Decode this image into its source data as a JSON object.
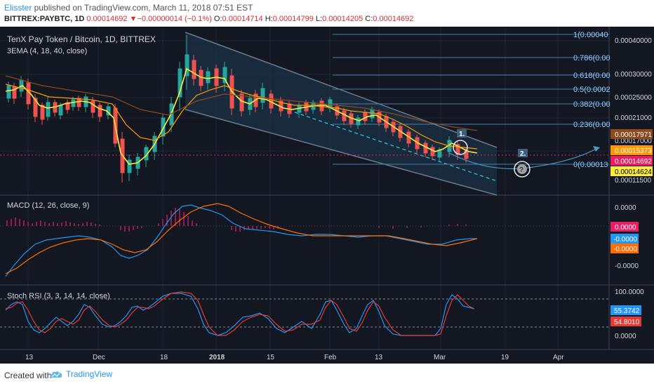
{
  "header": {
    "author": "Elisster",
    "published": " published on TradingView.com, March 11, 2018 07:51 EST",
    "symbol": "BITTREX:PAYBTC, 1D",
    "last": "0.00014692",
    "change": "▼−0.00000014 (−0.1%)",
    "open_label": "O:",
    "open": "0.00014714",
    "high_label": "H:",
    "high": "0.00014799",
    "low_label": "L:",
    "low": "0.00014205",
    "close_label": "C:",
    "close": "0.00014692"
  },
  "main": {
    "title": "TenX Pay Token / Bitcoin, 1D, BITTREX",
    "indicator": "3EMA (4, 18, 40, close)",
    "price_axis": [
      "0.00040000",
      "0.00030000",
      "0.00025000",
      "0.00021000",
      "0.00017000",
      "0.00011500"
    ],
    "price_badges": [
      {
        "value": "0.00017971",
        "color": "#8d4a1c"
      },
      {
        "value": "0.00015373",
        "color": "#ff9800"
      },
      {
        "value": "0.00014692",
        "color": "#e91e63"
      },
      {
        "value": "0.00014624",
        "color": "#ffeb3b"
      }
    ],
    "fib_levels": [
      "1(0.00040",
      "0.786(0.00",
      "0.618(0.00",
      "0.5(0.0002",
      "0.382(0.00",
      "0.236(0.00",
      "0(0.00013"
    ],
    "markers": [
      "1.",
      "2.",
      "?"
    ]
  },
  "macd": {
    "title": "MACD (12, 26, close, 9)",
    "axis": [
      "0.0000",
      "-0.0000"
    ],
    "badges": [
      {
        "value": "0.0000",
        "color": "#e91e63"
      },
      {
        "value": "-0.0000",
        "color": "#2196f3"
      },
      {
        "value": "-0.0000",
        "color": "#ff6d00"
      }
    ]
  },
  "stoch": {
    "title": "Stoch RSI (3, 3, 14, 14, close)",
    "axis": [
      "100.0000",
      "0.0000"
    ],
    "badges": [
      {
        "value": "55.3742",
        "color": "#2196f3"
      },
      {
        "value": "54.8010",
        "color": "#e53935"
      }
    ]
  },
  "time_axis": [
    "13",
    "Dec",
    "18",
    "2018",
    "15",
    "Feb",
    "13",
    "Mar",
    "19",
    "Apr"
  ],
  "footer": {
    "created": "Created with",
    "brand": "TradingView"
  }
}
